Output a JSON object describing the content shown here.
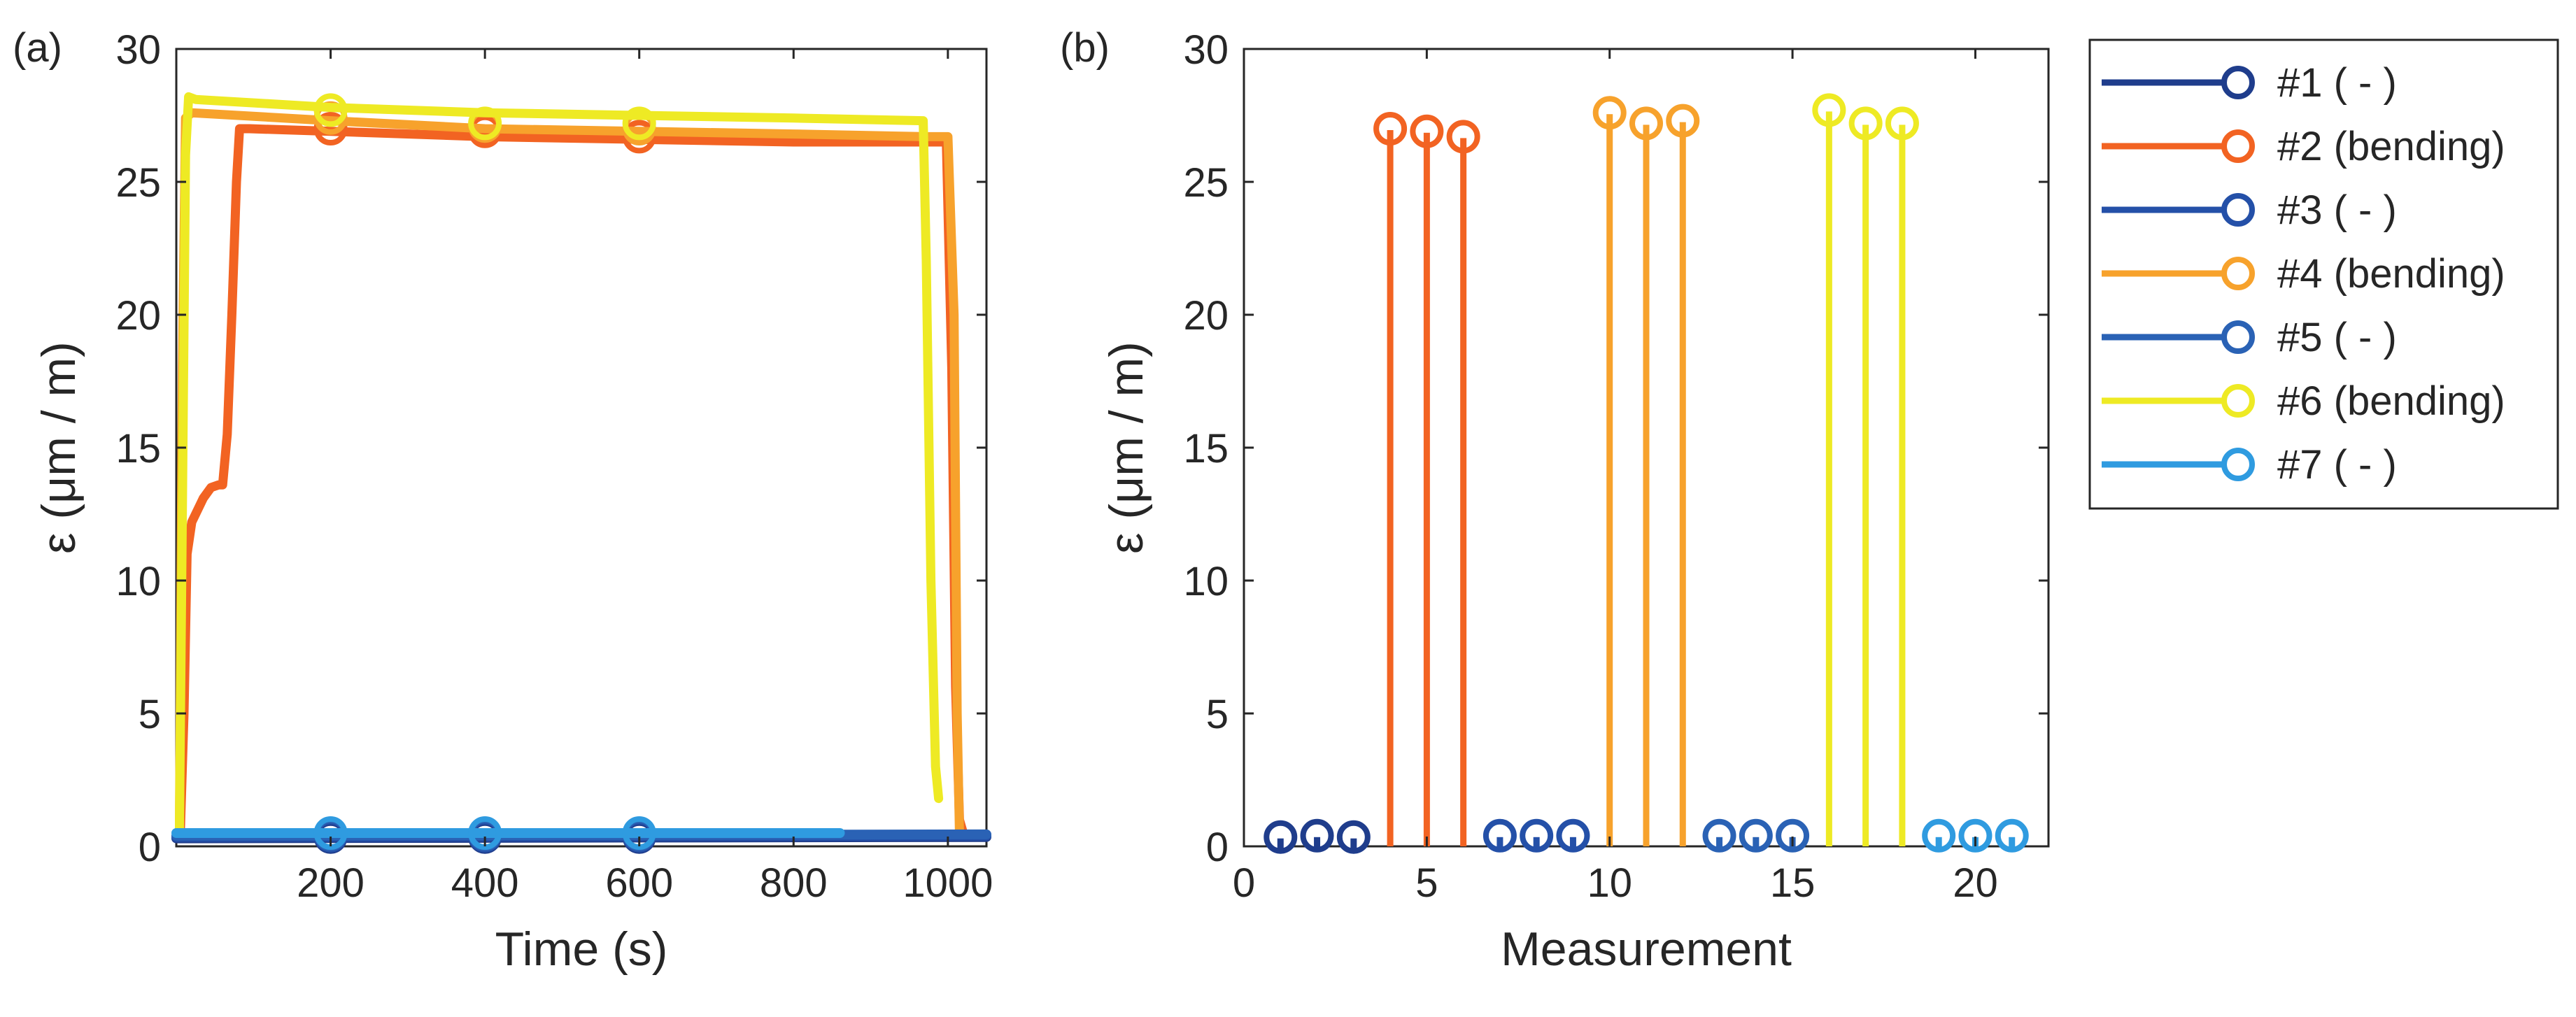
{
  "figure": {
    "panel_a_label": "(a)",
    "panel_b_label": "(b)"
  },
  "colors": {
    "s1": "#1f3d8c",
    "s2": "#f26322",
    "s3": "#2450a8",
    "s4": "#f7a22c",
    "s5": "#2a62b5",
    "s6": "#eeea24",
    "s7": "#2f9be0",
    "axis": "#262626"
  },
  "chart_data": [
    {
      "id": "panel-a",
      "type": "line",
      "title": "",
      "xlabel": "Time (s)",
      "ylabel": "ε (μm / m)",
      "xlim": [
        0,
        1050
      ],
      "ylim": [
        0,
        30
      ],
      "xticks": [
        200,
        400,
        600,
        800,
        1000
      ],
      "yticks": [
        0,
        5,
        10,
        15,
        20,
        25,
        30
      ],
      "series": [
        {
          "name": "#2 (bending)",
          "color_key": "s2",
          "points": [
            [
              0,
              0.3
            ],
            [
              5,
              0.3
            ],
            [
              10,
              5
            ],
            [
              14,
              11
            ],
            [
              20,
              12.2
            ],
            [
              35,
              13.1
            ],
            [
              45,
              13.5
            ],
            [
              55,
              13.6
            ],
            [
              60,
              13.6
            ],
            [
              66,
              15.5
            ],
            [
              72,
              20
            ],
            [
              78,
              25
            ],
            [
              82,
              27
            ],
            [
              95,
              27.0
            ],
            [
              200,
              26.9
            ],
            [
              400,
              26.7
            ],
            [
              600,
              26.6
            ],
            [
              800,
              26.5
            ],
            [
              998,
              26.5
            ],
            [
              1005,
              18
            ],
            [
              1010,
              6
            ],
            [
              1015,
              1
            ],
            [
              1020,
              0.5
            ]
          ],
          "markers": [
            [
              200,
              27.0
            ],
            [
              400,
              26.9
            ],
            [
              600,
              26.7
            ]
          ]
        },
        {
          "name": "#4 (bending)",
          "color_key": "s4",
          "points": [
            [
              0,
              0.3
            ],
            [
              4,
              0.3
            ],
            [
              8,
              18
            ],
            [
              12,
              27.4
            ],
            [
              20,
              27.6
            ],
            [
              200,
              27.3
            ],
            [
              400,
              27.0
            ],
            [
              600,
              26.9
            ],
            [
              800,
              26.8
            ],
            [
              970,
              26.7
            ],
            [
              1000,
              26.7
            ],
            [
              1008,
              20
            ],
            [
              1012,
              5
            ],
            [
              1015,
              0.5
            ]
          ],
          "markers": [
            [
              200,
              27.4
            ],
            [
              400,
              27.1
            ],
            [
              600,
              27.0
            ]
          ]
        },
        {
          "name": "#6 (bending)",
          "color_key": "s6",
          "points": [
            [
              0,
              0.3
            ],
            [
              4,
              0.5
            ],
            [
              8,
              13
            ],
            [
              12,
              26
            ],
            [
              16,
              28.2
            ],
            [
              25,
              28.1
            ],
            [
              200,
              27.8
            ],
            [
              400,
              27.6
            ],
            [
              600,
              27.5
            ],
            [
              800,
              27.4
            ],
            [
              968,
              27.3
            ],
            [
              972,
              22
            ],
            [
              978,
              10
            ],
            [
              984,
              3
            ],
            [
              988,
              1.8
            ]
          ],
          "markers": [
            [
              200,
              27.7
            ],
            [
              400,
              27.2
            ],
            [
              600,
              27.2
            ]
          ]
        },
        {
          "name": "#1 ( - )",
          "color_key": "s1",
          "points": [
            [
              0,
              0.3
            ],
            [
              1050,
              0.35
            ]
          ],
          "markers": [
            [
              200,
              0.35
            ],
            [
              400,
              0.35
            ],
            [
              600,
              0.35
            ]
          ]
        },
        {
          "name": "#3 ( - )",
          "color_key": "s3",
          "points": [
            [
              0,
              0.35
            ],
            [
              1050,
              0.4
            ]
          ],
          "markers": [
            [
              200,
              0.4
            ],
            [
              400,
              0.4
            ],
            [
              600,
              0.4
            ]
          ]
        },
        {
          "name": "#5 ( - )",
          "color_key": "s5",
          "points": [
            [
              0,
              0.4
            ],
            [
              1050,
              0.45
            ]
          ],
          "markers": [
            [
              200,
              0.45
            ],
            [
              400,
              0.45
            ],
            [
              600,
              0.45
            ]
          ]
        },
        {
          "name": "#7 ( - )",
          "color_key": "s7",
          "points": [
            [
              0,
              0.5
            ],
            [
              860,
              0.5
            ]
          ],
          "markers": [
            [
              200,
              0.5
            ],
            [
              400,
              0.5
            ],
            [
              600,
              0.5
            ]
          ]
        }
      ]
    },
    {
      "id": "panel-b",
      "type": "stem",
      "title": "",
      "xlabel": "Measurement",
      "ylabel": "ε (μm / m)",
      "xlim": [
        0,
        22
      ],
      "ylim": [
        0,
        30
      ],
      "xticks": [
        0,
        5,
        10,
        15,
        20
      ],
      "yticks": [
        0,
        5,
        10,
        15,
        20,
        25,
        30
      ],
      "series": [
        {
          "name": "#1 ( - )",
          "color_key": "s1",
          "x": [
            1,
            2,
            3
          ],
          "y": [
            0.35,
            0.4,
            0.35
          ]
        },
        {
          "name": "#2 (bending)",
          "color_key": "s2",
          "x": [
            4,
            5,
            6
          ],
          "y": [
            27.0,
            26.9,
            26.7
          ]
        },
        {
          "name": "#3 ( - )",
          "color_key": "s3",
          "x": [
            7,
            8,
            9
          ],
          "y": [
            0.4,
            0.4,
            0.4
          ]
        },
        {
          "name": "#4 (bending)",
          "color_key": "s4",
          "x": [
            10,
            11,
            12
          ],
          "y": [
            27.6,
            27.2,
            27.3
          ]
        },
        {
          "name": "#5 ( - )",
          "color_key": "s5",
          "x": [
            13,
            14,
            15
          ],
          "y": [
            0.4,
            0.4,
            0.4
          ]
        },
        {
          "name": "#6 (bending)",
          "color_key": "s6",
          "x": [
            16,
            17,
            18
          ],
          "y": [
            27.7,
            27.2,
            27.2
          ]
        },
        {
          "name": "#7 ( - )",
          "color_key": "s7",
          "x": [
            19,
            20,
            21
          ],
          "y": [
            0.4,
            0.4,
            0.4
          ]
        }
      ]
    }
  ],
  "legend": {
    "entries": [
      {
        "label": "#1 ( - )",
        "color_key": "s1"
      },
      {
        "label": "#2 (bending)",
        "color_key": "s2"
      },
      {
        "label": "#3 ( - )",
        "color_key": "s3"
      },
      {
        "label": "#4 (bending)",
        "color_key": "s4"
      },
      {
        "label": "#5 ( - )",
        "color_key": "s5"
      },
      {
        "label": "#6 (bending)",
        "color_key": "s6"
      },
      {
        "label": "#7 ( - )",
        "color_key": "s7"
      }
    ]
  }
}
